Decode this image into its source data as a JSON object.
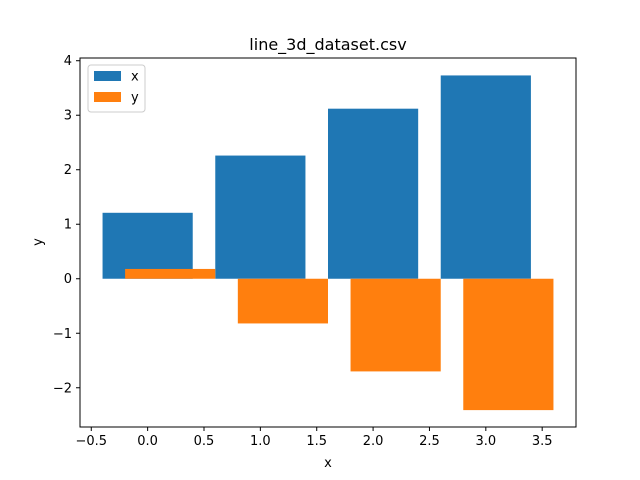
{
  "chart_data": {
    "type": "bar",
    "title": "line_3d_dataset.csv",
    "xlabel": "x",
    "ylabel": "y",
    "xlim": [
      -0.6,
      3.8
    ],
    "ylim": [
      -2.72,
      4.05
    ],
    "xticks": [
      -0.5,
      0.0,
      0.5,
      1.0,
      1.5,
      2.0,
      2.5,
      3.0,
      3.5
    ],
    "xtick_labels": [
      "−0.5",
      "0.0",
      "0.5",
      "1.0",
      "1.5",
      "2.0",
      "2.5",
      "3.0",
      "3.5"
    ],
    "yticks": [
      -2,
      -1,
      0,
      1,
      2,
      3,
      4
    ],
    "ytick_labels": [
      "−2",
      "−1",
      "0",
      "1",
      "2",
      "3",
      "4"
    ],
    "bar_width": 0.8,
    "grid": false,
    "legend_position": "top-left",
    "series": [
      {
        "name": "x",
        "color": "#1f77b4",
        "points": [
          {
            "x": 0.0,
            "y": 1.21
          },
          {
            "x": 1.0,
            "y": 2.26
          },
          {
            "x": 2.0,
            "y": 3.12
          },
          {
            "x": 3.0,
            "y": 3.73
          }
        ]
      },
      {
        "name": "y",
        "color": "#ff7f0e",
        "points": [
          {
            "x": 0.2,
            "y": 0.18
          },
          {
            "x": 1.2,
            "y": -0.82
          },
          {
            "x": 2.2,
            "y": -1.7
          },
          {
            "x": 3.2,
            "y": -2.41
          }
        ]
      }
    ]
  }
}
